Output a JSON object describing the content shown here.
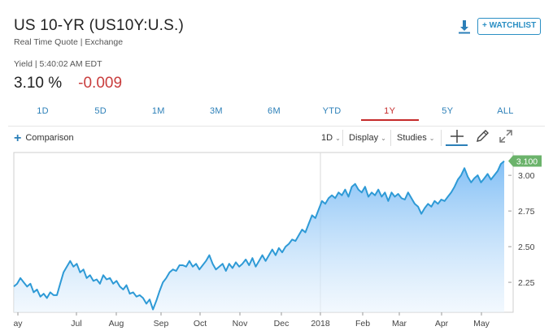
{
  "header": {
    "title": "US 10-YR (US10Y:U.S.)",
    "subtitle": "Real Time Quote | Exchange",
    "yield_line": "Yield | 5:40:02 AM EDT",
    "price": "3.10 %",
    "change": "-0.009",
    "watchlist_label": "+ WATCHLIST"
  },
  "tabs": [
    {
      "label": "1D",
      "active": false
    },
    {
      "label": "5D",
      "active": false
    },
    {
      "label": "1M",
      "active": false
    },
    {
      "label": "3M",
      "active": false
    },
    {
      "label": "6M",
      "active": false
    },
    {
      "label": "YTD",
      "active": false
    },
    {
      "label": "1Y",
      "active": true
    },
    {
      "label": "5Y",
      "active": false
    },
    {
      "label": "ALL",
      "active": false
    }
  ],
  "toolbar": {
    "comparison_label": "Comparison",
    "interval_label": "1D",
    "display_label": "Display",
    "studies_label": "Studies"
  },
  "colors": {
    "accent": "#2b7fb8",
    "negative": "#c93d3d",
    "line": "#2e9ad6",
    "fill_top": "#7cbcf5",
    "last_price_badge": "#6bb36b"
  },
  "chart_data": {
    "type": "area",
    "ylim": [
      2.04,
      3.16
    ],
    "yticks": [
      "3.00",
      "2.75",
      "2.50",
      "2.25"
    ],
    "ytick_values": [
      3.0,
      2.75,
      2.5,
      2.25
    ],
    "xtick_labels": [
      "ay",
      "Jul",
      "Aug",
      "Sep",
      "Oct",
      "Nov",
      "Dec",
      "2018",
      "Feb",
      "Mar",
      "Apr",
      "May"
    ],
    "last_value_label": "3.100",
    "grid": false,
    "values": [
      2.22,
      2.24,
      2.28,
      2.25,
      2.22,
      2.24,
      2.18,
      2.2,
      2.15,
      2.17,
      2.14,
      2.18,
      2.16,
      2.16,
      2.24,
      2.32,
      2.36,
      2.4,
      2.36,
      2.38,
      2.32,
      2.34,
      2.28,
      2.3,
      2.26,
      2.27,
      2.24,
      2.3,
      2.27,
      2.28,
      2.24,
      2.26,
      2.22,
      2.2,
      2.23,
      2.17,
      2.18,
      2.15,
      2.16,
      2.14,
      2.1,
      2.13,
      2.06,
      2.12,
      2.19,
      2.25,
      2.28,
      2.32,
      2.34,
      2.33,
      2.37,
      2.37,
      2.36,
      2.4,
      2.36,
      2.38,
      2.34,
      2.37,
      2.4,
      2.44,
      2.38,
      2.34,
      2.36,
      2.38,
      2.33,
      2.38,
      2.35,
      2.39,
      2.36,
      2.38,
      2.41,
      2.37,
      2.42,
      2.36,
      2.4,
      2.44,
      2.4,
      2.44,
      2.48,
      2.44,
      2.49,
      2.46,
      2.5,
      2.52,
      2.55,
      2.54,
      2.58,
      2.62,
      2.6,
      2.66,
      2.72,
      2.7,
      2.76,
      2.82,
      2.8,
      2.84,
      2.86,
      2.84,
      2.88,
      2.86,
      2.9,
      2.85,
      2.92,
      2.94,
      2.9,
      2.88,
      2.92,
      2.85,
      2.88,
      2.86,
      2.9,
      2.85,
      2.88,
      2.82,
      2.88,
      2.85,
      2.87,
      2.84,
      2.83,
      2.88,
      2.84,
      2.8,
      2.78,
      2.73,
      2.77,
      2.8,
      2.78,
      2.82,
      2.8,
      2.83,
      2.82,
      2.85,
      2.88,
      2.92,
      2.97,
      3.0,
      3.05,
      2.99,
      2.95,
      2.98,
      3.0,
      2.95,
      2.98,
      3.01,
      2.97,
      3.0,
      3.03,
      3.08,
      3.1
    ]
  }
}
